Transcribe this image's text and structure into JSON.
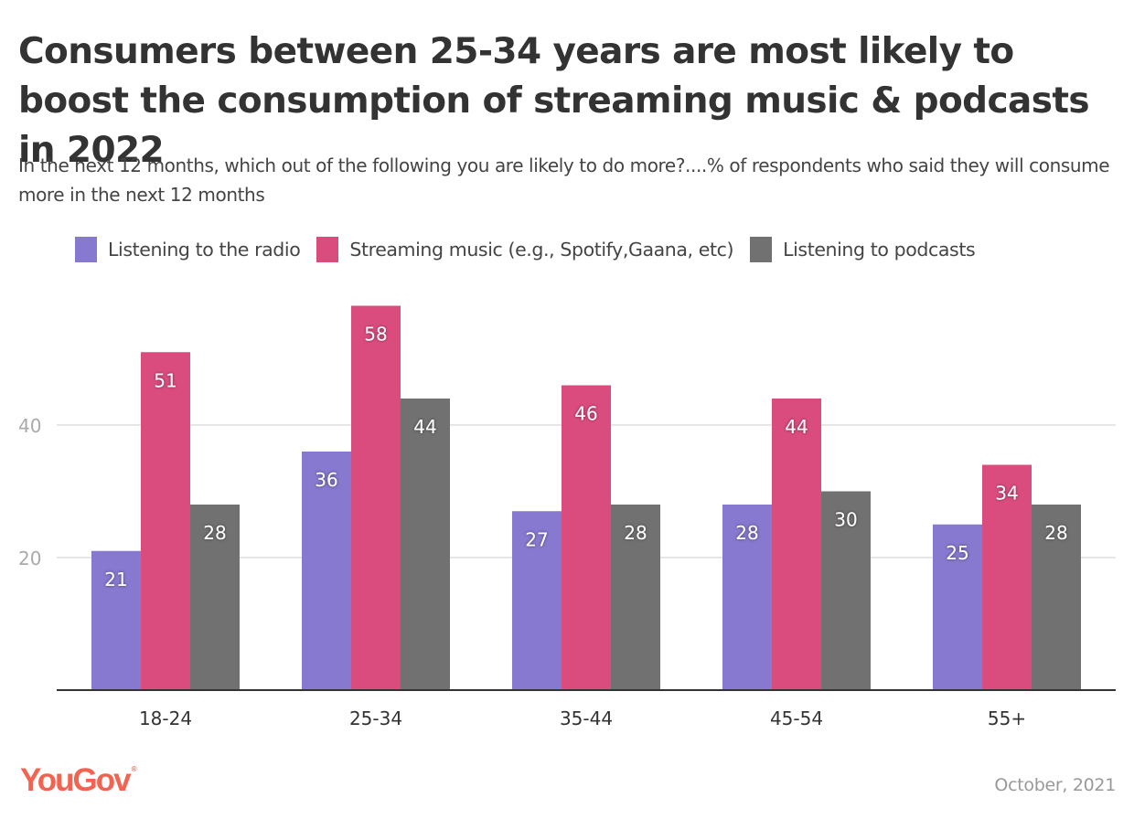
{
  "header": {
    "title": "Consumers between 25-34 years are most likely to boost the consumption of streaming music & podcasts in 2022",
    "subtitle": "In the next 12 months, which out of the following you are likely to do more?....% of respondents who said they will consume more in the next 12 months"
  },
  "footer": {
    "logo": "YouGov",
    "logo_mark": "®",
    "date": "October, 2021"
  },
  "chart_data": {
    "type": "bar",
    "title": "Consumers between 25-34 years are most likely to boost the consumption of streaming music & podcasts in 2022",
    "subtitle": "In the next 12 months, which out of the following you are likely to do more?....% of respondents who said they will consume more in the next 12 months",
    "xlabel": "",
    "ylabel": "",
    "categories": [
      "18-24",
      "25-34",
      "35-44",
      "45-54",
      "55+"
    ],
    "series": [
      {
        "name": "Listening to the radio",
        "color": "#8679cf",
        "values": [
          21,
          36,
          27,
          28,
          25
        ]
      },
      {
        "name": "Streaming music (e.g., Spotify,Gaana, etc)",
        "color": "#db4c7e",
        "values": [
          51,
          58,
          46,
          44,
          34
        ]
      },
      {
        "name": "Listening to podcasts",
        "color": "#717171",
        "values": [
          28,
          44,
          28,
          30,
          28
        ]
      }
    ],
    "ylim": [
      0,
      60
    ],
    "yticks": [
      20,
      40
    ],
    "grid": true,
    "legend_position": "top",
    "data_labels": true
  }
}
